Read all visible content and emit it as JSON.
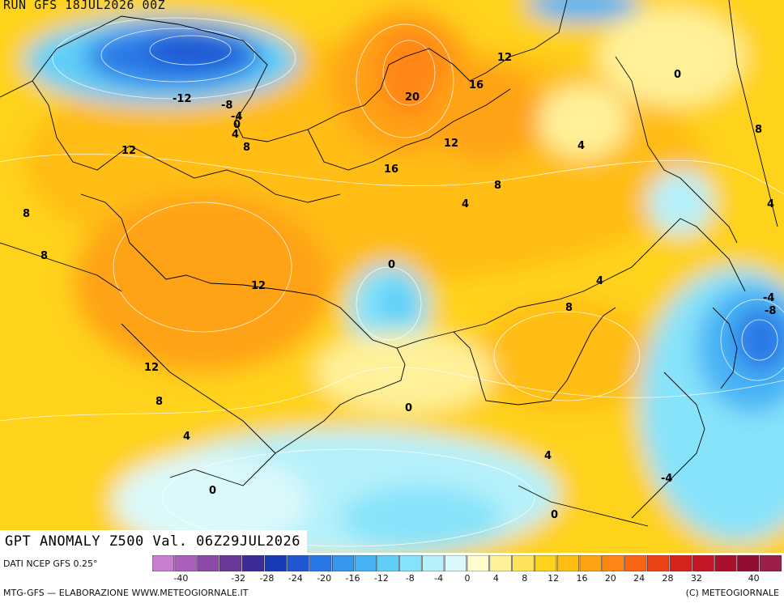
{
  "header": {
    "run_label": "RUN GFS 18JUL2026 00Z",
    "main_title": "GPT ANOMALY Z500 Val. 06Z29JUL2026"
  },
  "footer": {
    "data_source": "DATI NCEP GFS 0.25°",
    "credit": "MTG-GFS — ELABORAZIONE WWW.METEOGIORNALE.IT",
    "copyright": "(C) METEOGIORNALE"
  },
  "legend": {
    "colors": [
      "#c77fcf",
      "#ab5fbd",
      "#8c49a8",
      "#6a3a9a",
      "#3c2c98",
      "#1a3bb8",
      "#1f57d3",
      "#2a78e6",
      "#3797ef",
      "#46b3f5",
      "#5fcff8",
      "#87e3fa",
      "#b6f1fb",
      "#dbf9fb",
      "#fffbcc",
      "#fff19a",
      "#ffe35a",
      "#ffd21c",
      "#ffbd12",
      "#ffa312",
      "#ff8614",
      "#f96613",
      "#ec4415",
      "#d6231c",
      "#c21827",
      "#a8102d",
      "#930d33",
      "#9c1f4b"
    ],
    "tick_labels": [
      "-40",
      "-32",
      "-28",
      "-24",
      "-20",
      "-16",
      "-12",
      "-8",
      "-4",
      "0",
      "4",
      "8",
      "12",
      "16",
      "20",
      "24",
      "28",
      "32",
      "40"
    ]
  },
  "contour_labels": [
    "-12",
    "-8",
    "-4",
    "0",
    "4",
    "8",
    "12",
    "8",
    "16",
    "20",
    "12",
    "16",
    "12",
    "0",
    "8",
    "4",
    "4",
    "4",
    "8",
    "8",
    "12",
    "0",
    "-4",
    "-8",
    "12",
    "8",
    "4",
    "0",
    "4",
    "0",
    "-4",
    "0",
    "12",
    "8",
    "16",
    "12"
  ],
  "colors": {
    "land_border": "#000000",
    "contour_line": "#ffffff"
  }
}
